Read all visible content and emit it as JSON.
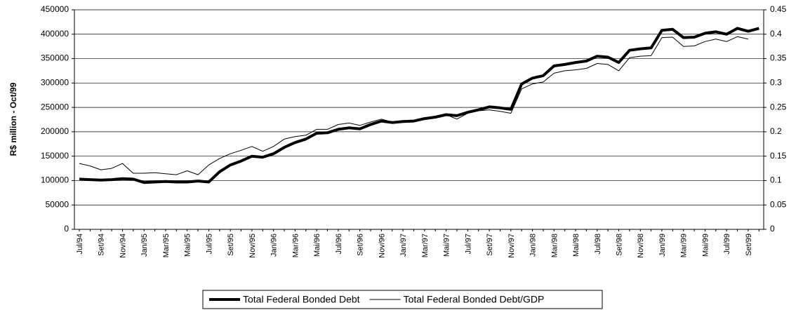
{
  "chart_data": {
    "type": "line",
    "y_label": "R$ million - Oct/99",
    "categories": [
      "Jul/94",
      null,
      "Set/94",
      null,
      "Nov/94",
      null,
      "Jan/95",
      null,
      "Mar/95",
      null,
      "Mai/95",
      null,
      "Jul/95",
      null,
      "Set/95",
      null,
      "Nov/95",
      null,
      "Jan/96",
      null,
      "Mar/96",
      null,
      "Mai/96",
      null,
      "Jul/96",
      null,
      "Set/96",
      null,
      "Nov/96",
      null,
      "Jan/97",
      null,
      "Mar/97",
      null,
      "Mai/97",
      null,
      "Jul/97",
      null,
      "Set/97",
      null,
      "Nov/97",
      null,
      "Jan/98",
      null,
      "Mar/98",
      null,
      "Mai/98",
      null,
      "Jul/98",
      null,
      "Set/98",
      null,
      "Nov/98",
      null,
      "Jan/99",
      null,
      "Mar/99",
      null,
      "Mai/99",
      null,
      "Jul/99",
      null,
      "Set/99",
      null
    ],
    "series": [
      {
        "name": "Total Federal Bonded Debt",
        "color": "#000000",
        "width": 4,
        "values": [
          103000,
          102000,
          101000,
          102000,
          104000,
          103000,
          96000,
          97000,
          98000,
          97000,
          97000,
          99000,
          97000,
          118000,
          132000,
          140000,
          150000,
          148000,
          155000,
          168000,
          178000,
          185000,
          197000,
          198000,
          205000,
          208000,
          206000,
          215000,
          222000,
          219000,
          221000,
          222000,
          227000,
          230000,
          235000,
          233000,
          240000,
          245000,
          251000,
          249000,
          246000,
          298000,
          310000,
          315000,
          335000,
          338000,
          342000,
          345000,
          355000,
          353000,
          342000,
          367000,
          370000,
          372000,
          408000,
          410000,
          393000,
          394000,
          402000,
          405000,
          400000,
          412000,
          406000,
          412000
        ]
      },
      {
        "name": "Total Federal Bonded Debt/GDP",
        "color": "#000000",
        "width": 1,
        "axis": "y2",
        "values": [
          0.135,
          0.13,
          0.122,
          0.125,
          0.135,
          0.115,
          0.115,
          0.116,
          0.114,
          0.112,
          0.12,
          0.112,
          0.132,
          0.145,
          0.155,
          0.162,
          0.17,
          0.16,
          0.17,
          0.185,
          0.19,
          0.193,
          0.205,
          0.205,
          0.215,
          0.218,
          0.213,
          0.22,
          0.226,
          0.22,
          0.222,
          0.222,
          0.225,
          0.232,
          0.235,
          0.226,
          0.238,
          0.243,
          0.245,
          0.242,
          0.238,
          0.288,
          0.298,
          0.302,
          0.32,
          0.325,
          0.327,
          0.33,
          0.34,
          0.338,
          0.325,
          0.352,
          0.355,
          0.356,
          0.393,
          0.394,
          0.375,
          0.376,
          0.385,
          0.39,
          0.385,
          0.395,
          0.39,
          null
        ]
      }
    ],
    "ylim": [
      0,
      450000
    ],
    "yticks": [
      0,
      50000,
      100000,
      150000,
      200000,
      250000,
      300000,
      350000,
      400000,
      450000
    ],
    "y2lim": [
      0,
      0.45
    ],
    "y2ticks": [
      0,
      0.05,
      0.1,
      0.15,
      0.2,
      0.25,
      0.3,
      0.35,
      0.4,
      0.45
    ],
    "grid": true,
    "legend": "bottom"
  }
}
